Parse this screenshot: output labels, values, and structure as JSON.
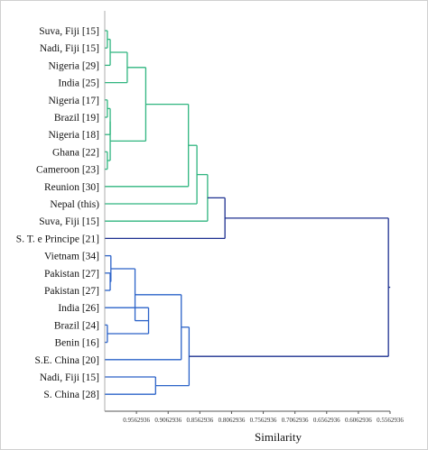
{
  "chart_data": {
    "type": "dendrogram",
    "xlabel": "Similarity",
    "x_ticks": [
      "0.9562936",
      "0.9062936",
      "0.8562936",
      "0.8062936",
      "0.7562936",
      "0.7062936",
      "0.6562936",
      "0.6062936",
      "0.5562936"
    ],
    "xlim": [
      1.0062936,
      0.5562936
    ],
    "grid": false,
    "leaves": [
      "Suva, Fiji [15]",
      "Nadi, Fiji [15]",
      "Nigeria [29]",
      "India [25]",
      "Nigeria [17]",
      "Brazil [19]",
      "Nigeria [18]",
      "Ghana [22]",
      "Cameroon [23]",
      "Reunion [30]",
      "Nepal (this)",
      "Suva, Fiji [15]",
      "S. T. e Principe   [21]",
      "Vietnam [34]",
      "Pakistan [27]",
      "Pakistan [27]",
      "India [26]",
      "Brazil [24]",
      "Benin [16]",
      "S.E. China [20]",
      "Nadi, Fiji [15]",
      "S. China [28]"
    ],
    "clusters": [
      {
        "left": 0,
        "right": 1,
        "similarity": 1.0022,
        "color": "#2fb57f"
      },
      {
        "left": 2,
        "right": "c0",
        "similarity": 0.9977,
        "color": "#2fb57f"
      },
      {
        "left": 3,
        "right": "c1",
        "similarity": 0.9708,
        "color": "#2fb57f"
      },
      {
        "left": 4,
        "right": 5,
        "similarity": 1.0022,
        "color": "#2fb57f"
      },
      {
        "left": 6,
        "right": "c3",
        "similarity": 0.9977,
        "color": "#2fb57f"
      },
      {
        "left": 7,
        "right": 8,
        "similarity": 1.0022,
        "color": "#2fb57f"
      },
      {
        "left": "c4",
        "right": "c5",
        "similarity": 0.9977,
        "color": "#2fb57f"
      },
      {
        "left": "c2",
        "right": "c6",
        "similarity": 0.9416,
        "color": "#2fb57f"
      },
      {
        "left": 9,
        "right": "c7",
        "similarity": 0.8743,
        "color": "#2fb57f"
      },
      {
        "left": 10,
        "right": "c8",
        "similarity": 0.8609,
        "color": "#2fb57f"
      },
      {
        "left": 11,
        "right": "c9",
        "similarity": 0.8441,
        "color": "#2fb57f"
      },
      {
        "left": 12,
        "right": "c10",
        "similarity": 0.8167,
        "color": "#1c2f8f"
      },
      {
        "left": 14,
        "right": 15,
        "similarity": 0.9977,
        "color": "#2a62c8"
      },
      {
        "left": 13,
        "right": "c12",
        "similarity": 0.9966,
        "color": "#2a62c8"
      },
      {
        "left": 17,
        "right": 18,
        "similarity": 1.0022,
        "color": "#2a62c8"
      },
      {
        "left": 16,
        "right": "c14",
        "similarity": 0.9372,
        "color": "#2a62c8"
      },
      {
        "left": "c13",
        "right": "c15",
        "similarity": 0.9585,
        "color": "#2a62c8"
      },
      {
        "left": 19,
        "right": "c16",
        "similarity": 0.8856,
        "color": "#2a62c8"
      },
      {
        "left": 20,
        "right": 21,
        "similarity": 0.9261,
        "color": "#2a62c8"
      },
      {
        "left": "c17",
        "right": "c18",
        "similarity": 0.8733,
        "color": "#2a62c8"
      },
      {
        "left": "c11",
        "right": "c19",
        "similarity": 0.5589,
        "color": "#1c2f8f"
      }
    ]
  }
}
